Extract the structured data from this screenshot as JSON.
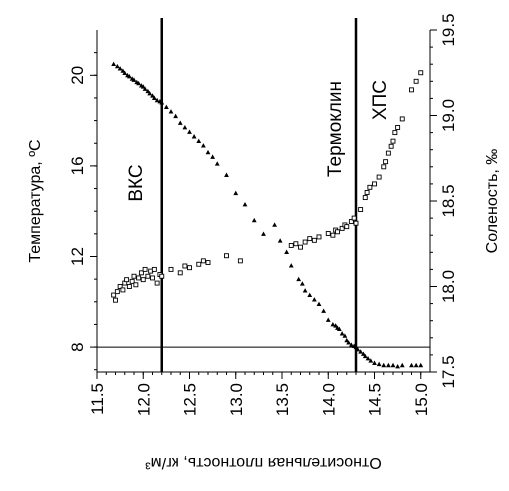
{
  "chart_data": {
    "type": "scatter",
    "title": "",
    "xlabel": "Относительная плотность, кг/м³",
    "ylabel_left": "Температура, ºС",
    "ylabel_right": "Соленость, ‰",
    "xlim": [
      11.5,
      15.1
    ],
    "ylim_left": [
      6.9,
      22
    ],
    "ylim_right": [
      17.5,
      19.5
    ],
    "x_ticks": [
      "11.5",
      "12.0",
      "12.5",
      "13.0",
      "13.5",
      "14.0",
      "14.5",
      "15.0"
    ],
    "y_left_ticks": [
      "8",
      "12",
      "16",
      "20"
    ],
    "y_right_ticks": [
      "17.5",
      "18.0",
      "18.5",
      "19.0",
      "19.5"
    ],
    "grid": false,
    "region_labels": [
      "ВКС",
      "Термоклин",
      "ХПС"
    ],
    "vertical_lines_x": [
      12.2,
      14.3
    ],
    "horizontal_line_temperature": 8,
    "series": [
      {
        "axis": "left",
        "marker": "triangle",
        "x": [
          11.68,
          11.72,
          11.75,
          11.78,
          11.8,
          11.83,
          11.85,
          11.88,
          11.9,
          11.93,
          11.95,
          11.98,
          12.0,
          12.02,
          12.05,
          12.07,
          12.1,
          12.12,
          12.15,
          12.18,
          12.2,
          12.25,
          12.3,
          12.35,
          12.4,
          12.45,
          12.5,
          12.55,
          12.6,
          12.65,
          12.7,
          12.75,
          12.8,
          12.9,
          13.0,
          13.1,
          13.2,
          13.3,
          13.42,
          13.48,
          13.55,
          13.6,
          13.68,
          13.72,
          13.75,
          13.8,
          13.85,
          13.9,
          13.95,
          14.0,
          14.05,
          14.08,
          14.1,
          14.12,
          14.15,
          14.18,
          14.2,
          14.22,
          14.25,
          14.28,
          14.3,
          14.32,
          14.35,
          14.38,
          14.4,
          14.43,
          14.46,
          14.5,
          14.55,
          14.6,
          14.65,
          14.7,
          14.75,
          14.8,
          14.9,
          14.95,
          15.0
        ],
        "y": [
          20.5,
          20.4,
          20.3,
          20.2,
          20.1,
          20.0,
          19.95,
          19.85,
          19.8,
          19.7,
          19.65,
          19.55,
          19.5,
          19.4,
          19.3,
          19.2,
          19.1,
          19.0,
          18.9,
          18.85,
          18.8,
          18.6,
          18.4,
          18.2,
          17.9,
          17.7,
          17.5,
          17.3,
          17.1,
          16.9,
          16.6,
          16.4,
          16.1,
          15.6,
          14.8,
          14.3,
          13.6,
          13.0,
          13.4,
          12.7,
          12.2,
          11.6,
          11.0,
          10.8,
          10.5,
          10.3,
          10.1,
          9.9,
          9.6,
          9.2,
          9.0,
          8.95,
          8.85,
          8.8,
          8.6,
          8.5,
          8.3,
          8.2,
          8.1,
          8.05,
          8.0,
          7.9,
          7.8,
          7.7,
          7.6,
          7.5,
          7.4,
          7.3,
          7.25,
          7.2,
          7.2,
          7.2,
          7.15,
          7.2,
          7.2,
          7.2,
          7.2
        ]
      },
      {
        "axis": "right",
        "marker": "square",
        "x": [
          11.68,
          11.7,
          11.72,
          11.75,
          11.78,
          11.8,
          11.82,
          11.85,
          11.88,
          11.9,
          11.92,
          11.95,
          11.98,
          12.0,
          12.02,
          12.05,
          12.08,
          12.1,
          12.12,
          12.15,
          12.18,
          12.2,
          12.3,
          12.4,
          12.45,
          12.5,
          12.6,
          12.65,
          12.7,
          12.9,
          13.05,
          13.6,
          13.65,
          13.7,
          13.75,
          13.8,
          13.85,
          13.9,
          14.0,
          14.05,
          14.08,
          14.1,
          14.15,
          14.18,
          14.2,
          14.25,
          14.28,
          14.3,
          14.35,
          14.4,
          14.42,
          14.45,
          14.5,
          14.55,
          14.6,
          14.62,
          14.65,
          14.68,
          14.7,
          14.72,
          14.75,
          14.8,
          14.9,
          14.95,
          15.0
        ],
        "y": [
          17.95,
          17.92,
          17.97,
          18.0,
          17.98,
          18.02,
          18.04,
          18.0,
          18.03,
          18.06,
          18.01,
          18.05,
          18.08,
          18.04,
          18.1,
          18.06,
          18.09,
          18.05,
          18.1,
          18.02,
          18.07,
          18.06,
          18.1,
          18.08,
          18.12,
          18.11,
          18.13,
          18.15,
          18.14,
          18.18,
          18.15,
          18.24,
          18.25,
          18.23,
          18.26,
          18.28,
          18.27,
          18.29,
          18.31,
          18.3,
          18.33,
          18.32,
          18.34,
          18.36,
          18.35,
          18.38,
          18.4,
          18.37,
          18.45,
          18.52,
          18.55,
          18.58,
          18.6,
          18.64,
          18.7,
          18.73,
          18.78,
          18.82,
          18.85,
          18.9,
          18.93,
          18.98,
          19.15,
          19.2,
          19.25
        ]
      }
    ]
  }
}
